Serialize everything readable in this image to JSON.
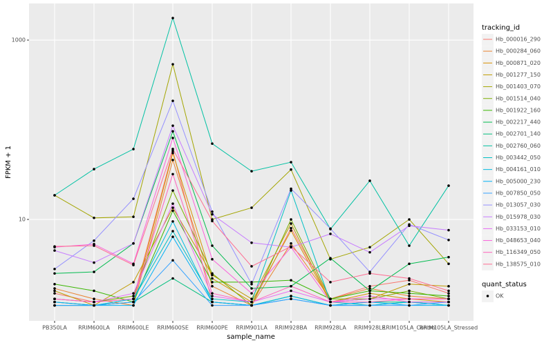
{
  "chart_data": {
    "type": "line",
    "x_label": "sample_name",
    "y_label": "FPKM + 1",
    "categories": [
      "PB350LA",
      "RRIM600LA",
      "RRIM600LE",
      "RRIM600SE",
      "RRIM600PE",
      "RRIM901LA",
      "RRIM928BA",
      "RRIM928LA",
      "RRIM928LE",
      "RRIM105LA_Control",
      "RRIM105LA_Stressed"
    ],
    "ylim": [
      0.74,
      2560
    ],
    "yticks": [
      10,
      1000
    ],
    "log_y": true,
    "grid": true,
    "legend_title": "tracking_id",
    "point_legend": {
      "title": "quant_status",
      "entries": [
        "OK"
      ]
    },
    "point_color": "#000000",
    "series": [
      {
        "name": "Hb_000016_290",
        "color": "#F8766D",
        "values": [
          1.5,
          1.2,
          1.3,
          58,
          1.2,
          1.1,
          8,
          1.3,
          1.8,
          2.1,
          1.5
        ]
      },
      {
        "name": "Hb_000284_060",
        "color": "#EA8331",
        "values": [
          1.7,
          1.3,
          1.1,
          46,
          1.8,
          1.1,
          5.4,
          1.3,
          1.7,
          1.4,
          1.3
        ]
      },
      {
        "name": "Hb_000871_020",
        "color": "#D89000",
        "values": [
          1.2,
          1.1,
          1.2,
          55,
          2.2,
          1.2,
          7.5,
          1.2,
          1.5,
          1.3,
          1.2
        ]
      },
      {
        "name": "Hb_001277_150",
        "color": "#C09B00",
        "values": [
          1.6,
          1.1,
          2.0,
          13.5,
          2.4,
          1.3,
          9,
          1.2,
          1.3,
          1.9,
          1.8
        ]
      },
      {
        "name": "Hb_001403_070",
        "color": "#A3A500",
        "values": [
          18.6,
          10.4,
          10.7,
          537,
          10,
          13.5,
          36,
          3.6,
          4.9,
          10,
          3.2
        ]
      },
      {
        "name": "Hb_001514_040",
        "color": "#7CAE00",
        "values": [
          1.3,
          1.2,
          1.4,
          21,
          2.5,
          1.1,
          10,
          1.3,
          1.3,
          1.6,
          1.3
        ]
      },
      {
        "name": "Hb_001922_160",
        "color": "#39B600",
        "values": [
          1.9,
          1.6,
          1.2,
          12.5,
          2.0,
          2.0,
          2.1,
          1.3,
          1.6,
          1.5,
          1.4
        ]
      },
      {
        "name": "Hb_002217_440",
        "color": "#00BB4E",
        "values": [
          2.5,
          2.6,
          5.4,
          96,
          5.1,
          1.7,
          1.8,
          3.7,
          1.6,
          3.2,
          3.8
        ]
      },
      {
        "name": "Hb_002701_140",
        "color": "#00BF7D",
        "values": [
          1.1,
          1.1,
          1.2,
          2.2,
          1.2,
          1.1,
          1.4,
          1.1,
          1.2,
          1.2,
          1.1
        ]
      },
      {
        "name": "Hb_002760_060",
        "color": "#00C1A3",
        "values": [
          18.6,
          36.4,
          60.9,
          1760,
          70,
          34.5,
          43.5,
          7.8,
          27,
          5.1,
          23.8
        ]
      },
      {
        "name": "Hb_003442_050",
        "color": "#00BFC4",
        "values": [
          1.2,
          1.1,
          1.3,
          7.4,
          1.3,
          1.2,
          21,
          1.2,
          1.1,
          1.2,
          1.2
        ]
      },
      {
        "name": "Hb_004161_010",
        "color": "#00BAE0",
        "values": [
          1.1,
          1.1,
          1.3,
          9.5,
          1.2,
          1.1,
          1.4,
          1.1,
          1.1,
          1.2,
          1.1
        ]
      },
      {
        "name": "Hb_005000_230",
        "color": "#00B0F6",
        "values": [
          1.2,
          1.1,
          1.1,
          6.4,
          1.2,
          1.1,
          1.3,
          1.1,
          1.2,
          1.1,
          1.1
        ]
      },
      {
        "name": "Hb_007850_050",
        "color": "#35A2FF",
        "values": [
          1.1,
          1.1,
          1.2,
          3.5,
          1.1,
          1.1,
          1.3,
          1.1,
          1.1,
          1.1,
          1.2
        ]
      },
      {
        "name": "Hb_013057_030",
        "color": "#9590FF",
        "values": [
          2.8,
          5.8,
          17,
          210,
          12.2,
          1.9,
          22,
          7.9,
          2.6,
          8.8,
          5.9
        ]
      },
      {
        "name": "Hb_015978_030",
        "color": "#C77CFF",
        "values": [
          4.5,
          3.3,
          5.4,
          111,
          11.4,
          5.5,
          4.9,
          6.9,
          4.3,
          8.5,
          7.6
        ]
      },
      {
        "name": "Hb_033153_010",
        "color": "#E76BF3",
        "values": [
          1.3,
          1.2,
          1.5,
          15,
          1.4,
          1.2,
          1.6,
          1.2,
          1.3,
          1.3,
          1.3
        ]
      },
      {
        "name": "Hb_048653_040",
        "color": "#FA62DB",
        "values": [
          4.9,
          5.3,
          3.2,
          81,
          3.6,
          1.5,
          4.9,
          1.2,
          1.4,
          1.2,
          1.2
        ]
      },
      {
        "name": "Hb_116349_050",
        "color": "#FF62BC",
        "values": [
          1.3,
          1.2,
          1.3,
          32,
          1.5,
          1.2,
          1.8,
          1.2,
          1.2,
          1.3,
          1.3
        ]
      },
      {
        "name": "Hb_138575_010",
        "color": "#FF6C91",
        "values": [
          5.0,
          5.1,
          3.1,
          61,
          9.6,
          3.0,
          5.0,
          2.0,
          2.5,
          2.2,
          1.6
        ]
      }
    ]
  }
}
